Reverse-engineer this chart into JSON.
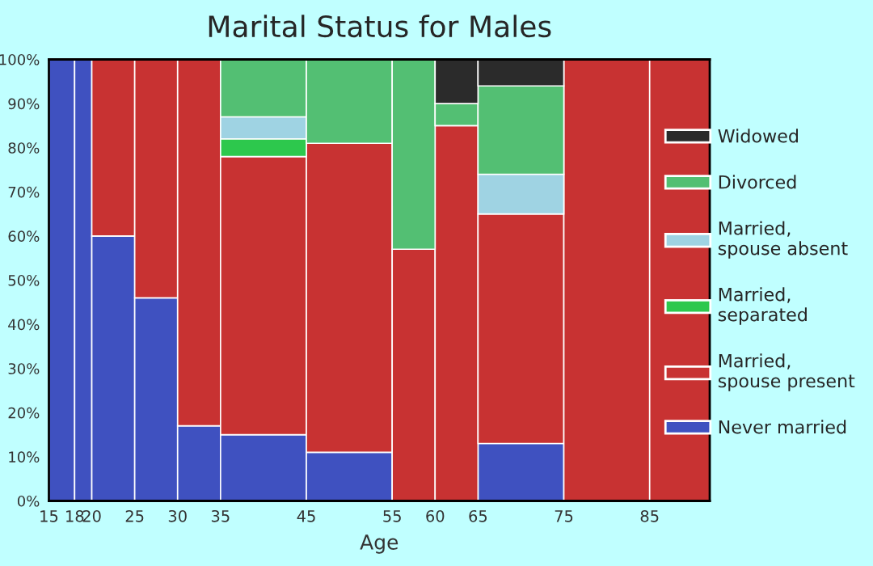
{
  "chart_data": {
    "type": "bar",
    "stacked": true,
    "title": "Marital Status for Males",
    "xlabel": "Age",
    "x": [
      16.5,
      19,
      22.5,
      27.5,
      32.5,
      40,
      50,
      57.5,
      62.5,
      70,
      80,
      88.5
    ],
    "series": [
      {
        "name": "Never married",
        "color": "#3f51c0",
        "values": [
          100,
          100,
          60,
          46,
          17,
          15,
          11,
          null,
          null,
          13,
          null,
          null
        ]
      },
      {
        "name": "Married,\nspouse present",
        "color": "#c83232",
        "values": [
          null,
          null,
          40,
          54,
          83,
          63,
          70,
          57,
          85,
          52,
          100,
          100
        ]
      },
      {
        "name": "Married,\nseparated",
        "color": "#2dc84d",
        "values": [
          null,
          null,
          null,
          null,
          null,
          4,
          null,
          null,
          null,
          null,
          null,
          null
        ]
      },
      {
        "name": "Married,\nspouse absent",
        "color": "#9fd3e3",
        "values": [
          null,
          null,
          null,
          null,
          null,
          5,
          null,
          null,
          null,
          9,
          null,
          null
        ]
      },
      {
        "name": "Divorced",
        "color": "#53bf73",
        "values": [
          null,
          null,
          null,
          null,
          null,
          13,
          19,
          43,
          5,
          20,
          null,
          null
        ]
      },
      {
        "name": "Widowed",
        "color": "#2b2b2b",
        "values": [
          null,
          null,
          null,
          null,
          null,
          null,
          null,
          null,
          10,
          6,
          null,
          null
        ]
      }
    ],
    "xlim": [
      15,
      92
    ],
    "xticks": [
      15,
      18,
      20,
      25,
      30,
      35,
      45,
      55,
      60,
      65,
      75,
      85
    ],
    "ylim": [
      0,
      100
    ],
    "yticks": [
      {
        "value": 0,
        "label": "0%"
      },
      {
        "value": 10,
        "label": "10%"
      },
      {
        "value": 20,
        "label": "20%"
      },
      {
        "value": 30,
        "label": "30%"
      },
      {
        "value": 40,
        "label": "40%"
      },
      {
        "value": 50,
        "label": "50%"
      },
      {
        "value": 60,
        "label": "60%"
      },
      {
        "value": 70,
        "label": "70%"
      },
      {
        "value": 80,
        "label": "80%"
      },
      {
        "value": 90,
        "label": "90%"
      },
      {
        "value": 100,
        "label": "100%"
      }
    ],
    "legend": "right"
  }
}
